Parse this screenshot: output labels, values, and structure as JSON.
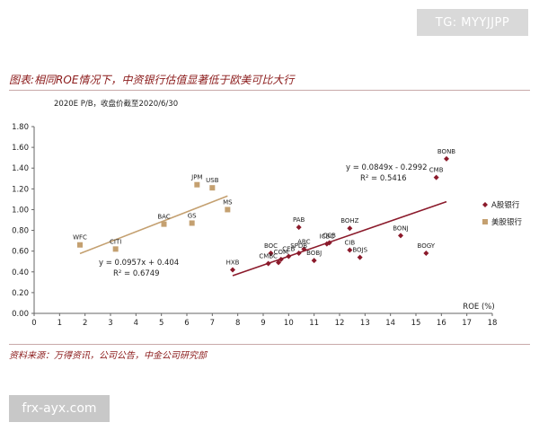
{
  "watermark_top": "TG: MYYJJPP",
  "watermark_bottom": "frx-ayx.com",
  "figure_title": "图表:相同ROE情况下，中资银行估值显著低于欧美可比大行",
  "source_note": "资料来源：万得资讯，公司公告，中金公司研究部",
  "chart_data": {
    "type": "scatter",
    "title": "2020E P/B，收盘价截至2020/6/30",
    "xlabel": "ROE (%)",
    "ylabel": "",
    "xlim": [
      0,
      18
    ],
    "ylim": [
      0,
      1.8
    ],
    "xticks": [
      "0",
      "1",
      "2",
      "3",
      "4",
      "5",
      "6",
      "7",
      "8",
      "9",
      "10",
      "11",
      "12",
      "13",
      "14",
      "15",
      "16",
      "17",
      "18"
    ],
    "yticks": [
      "0.00",
      "0.20",
      "0.40",
      "0.60",
      "0.80",
      "1.00",
      "1.20",
      "1.40",
      "1.60",
      "1.80"
    ],
    "grid": false,
    "legend_position": "right",
    "colors": {
      "a_share": "#8b1a2b",
      "us": "#c4a070"
    },
    "series": [
      {
        "name": "A股银行",
        "marker": "diamond",
        "color": "#8b1a2b",
        "points": [
          {
            "label": "BONB",
            "x": 16.2,
            "y": 1.49
          },
          {
            "label": "CMB",
            "x": 15.8,
            "y": 1.31
          },
          {
            "label": "BONJ",
            "x": 14.4,
            "y": 0.75
          },
          {
            "label": "BOGY",
            "x": 15.4,
            "y": 0.58
          },
          {
            "label": "PAB",
            "x": 10.4,
            "y": 0.83
          },
          {
            "label": "BOHZ",
            "x": 12.4,
            "y": 0.82
          },
          {
            "label": "ICBC",
            "x": 11.5,
            "y": 0.67
          },
          {
            "label": "CCB",
            "x": 11.6,
            "y": 0.68
          },
          {
            "label": "CIB",
            "x": 12.4,
            "y": 0.61
          },
          {
            "label": "BOJS",
            "x": 12.8,
            "y": 0.54
          },
          {
            "label": "ABC",
            "x": 10.6,
            "y": 0.62
          },
          {
            "label": "SPDB",
            "x": 10.4,
            "y": 0.58
          },
          {
            "label": "CEB",
            "x": 10.0,
            "y": 0.55
          },
          {
            "label": "BOBJ",
            "x": 11.0,
            "y": 0.51
          },
          {
            "label": "COM",
            "x": 9.7,
            "y": 0.52
          },
          {
            "label": "BOC",
            "x": 9.3,
            "y": 0.58
          },
          {
            "label": "CMBC",
            "x": 9.2,
            "y": 0.48
          },
          {
            "label": "",
            "x": 9.6,
            "y": 0.49
          },
          {
            "label": "HXB",
            "x": 7.8,
            "y": 0.42
          }
        ]
      },
      {
        "name": "美股银行",
        "marker": "square",
        "color": "#c4a070",
        "points": [
          {
            "label": "WFC",
            "x": 1.8,
            "y": 0.66
          },
          {
            "label": "CITI",
            "x": 3.2,
            "y": 0.62
          },
          {
            "label": "BAC",
            "x": 5.1,
            "y": 0.86
          },
          {
            "label": "GS",
            "x": 6.2,
            "y": 0.87
          },
          {
            "label": "JPM",
            "x": 6.4,
            "y": 1.24
          },
          {
            "label": "USB",
            "x": 7.0,
            "y": 1.21
          },
          {
            "label": "MS",
            "x": 7.6,
            "y": 1.0
          }
        ]
      }
    ],
    "trendlines": [
      {
        "series": "A股银行",
        "slope": 0.0849,
        "intercept": -0.2992,
        "x_range": [
          7.8,
          16.2
        ],
        "equation": "y = 0.0849x - 0.2992",
        "r2": "R² = 0.5416"
      },
      {
        "series": "美股银行",
        "slope": 0.0957,
        "intercept": 0.404,
        "x_range": [
          1.8,
          7.6
        ],
        "equation": "y = 0.0957x + 0.404",
        "r2": "R² = 0.6749"
      }
    ]
  }
}
